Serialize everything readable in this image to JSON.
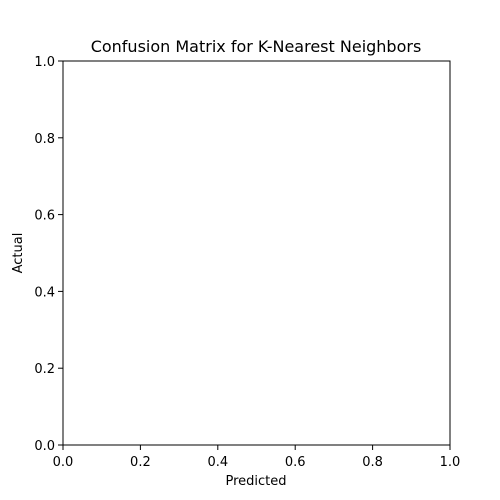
{
  "chart_data": {
    "type": "heatmap",
    "title": "Confusion Matrix for K-Nearest Neighbors",
    "xlabel": "Predicted",
    "ylabel": "Actual",
    "xlim": [
      0,
      1
    ],
    "ylim": [
      0,
      1
    ],
    "xticks": [
      "0.0",
      "0.2",
      "0.4",
      "0.6",
      "0.8",
      "1.0"
    ],
    "yticks": [
      "0.0",
      "0.2",
      "0.4",
      "0.6",
      "0.8",
      "1.0"
    ],
    "grid": false,
    "values": []
  }
}
